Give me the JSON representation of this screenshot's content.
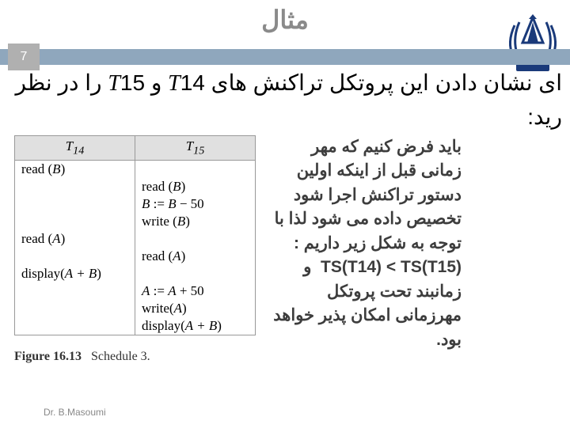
{
  "title": "مثال",
  "page_number": "7",
  "heading_html": "ای نشان دادن این پروتکل تراکنش های <span class='ital'>T</span>14 و <span class='ital'>T</span>15 را در نظر<br>رید:",
  "schedule": {
    "header_t14": "T",
    "header_t14_sub": "14",
    "header_t15": "T",
    "header_t15_sub": "15",
    "rows": [
      {
        "t14": "read (B)",
        "t15": ""
      },
      {
        "t14": "",
        "t15": "read (B)"
      },
      {
        "t14": "",
        "t15": "B := B − 50"
      },
      {
        "t14": "",
        "t15": "write (B)"
      },
      {
        "t14": "read (A)",
        "t15": ""
      },
      {
        "t14": "",
        "t15": "read (A)"
      },
      {
        "t14": "display(A + B)",
        "t15": ""
      },
      {
        "t14": "",
        "t15": "A := A + 50"
      },
      {
        "t14": "",
        "t15": "write(A)"
      },
      {
        "t14": "",
        "t15": "display(A + B)"
      }
    ]
  },
  "figure_caption_bold": "Figure 16.13",
  "figure_caption_rest": "Schedule 3.",
  "explain_html": "باید فرض کنیم که مهر زمانی قبل از اینکه اولین دستور تراکنش اجرا شود تخصیص داده می شود لذا با توجه به شکل زیر داریم :<br><span class='ltr'>TS(T14) &lt; TS(T15)</span>&nbsp;&nbsp;و زمانبند تحت پروتکل مهرزمانی امکان پذیر خواهد بود.",
  "footer": "Dr.  B.Masoumi",
  "colors": {
    "bar": "#8fa7bd",
    "pagebox": "#b0b0b0",
    "title": "#8a8a8a"
  }
}
